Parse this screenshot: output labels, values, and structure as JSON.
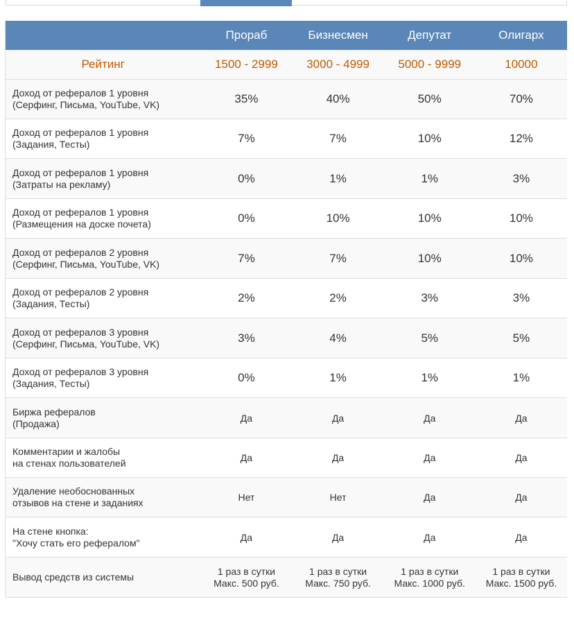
{
  "columns": [
    "Прораб",
    "Бизнесмен",
    "Депутат",
    "Олигарх"
  ],
  "rating": {
    "label": "Рейтинг",
    "values": [
      "1500 - 2999",
      "3000 - 4999",
      "5000 - 9999",
      "10000"
    ]
  },
  "rows": [
    {
      "line1": "Доход от рефералов 1 уровня",
      "line2": "(Серфинг, Письма, YouTube, VK)",
      "values": [
        "35%",
        "40%",
        "50%",
        "70%"
      ]
    },
    {
      "line1": "Доход от рефералов 1 уровня",
      "line2": "(Задания, Тесты)",
      "values": [
        "7%",
        "7%",
        "10%",
        "12%"
      ]
    },
    {
      "line1": "Доход от рефералов 1 уровня",
      "line2": "(Затраты на рекламу)",
      "values": [
        "0%",
        "1%",
        "1%",
        "3%"
      ]
    },
    {
      "line1": "Доход от рефералов 1 уровня",
      "line2": "(Размещения на доске почета)",
      "values": [
        "0%",
        "10%",
        "10%",
        "10%"
      ]
    },
    {
      "line1": "Доход от рефералов 2 уровня",
      "line2": "(Серфинг, Письма, YouTube, VK)",
      "values": [
        "7%",
        "7%",
        "10%",
        "10%"
      ]
    },
    {
      "line1": "Доход от рефералов 2 уровня",
      "line2": "(Задания, Тесты)",
      "values": [
        "2%",
        "2%",
        "3%",
        "3%"
      ]
    },
    {
      "line1": "Доход от рефералов 3 уровня",
      "line2": "(Серфинг, Письма, YouTube, VK)",
      "values": [
        "3%",
        "4%",
        "5%",
        "5%"
      ]
    },
    {
      "line1": "Доход от рефералов 3 уровня",
      "line2": "(Задания, Тесты)",
      "values": [
        "0%",
        "1%",
        "1%",
        "1%"
      ]
    },
    {
      "line1": "Биржа рефералов",
      "line2": "(Продажа)",
      "values": [
        "Да",
        "Да",
        "Да",
        "Да"
      ]
    },
    {
      "line1": "Комментарии и жалобы",
      "line2": "на стенах пользователей",
      "values": [
        "Да",
        "Да",
        "Да",
        "Да"
      ]
    },
    {
      "line1": "Удаление необоснованных",
      "line2": "отзывов на стене и заданиях",
      "values": [
        "Нет",
        "Нет",
        "Да",
        "Да"
      ]
    },
    {
      "line1": "На стене кнопка:",
      "line2": "\"Хочу стать его рефералом\"",
      "values": [
        "Да",
        "Да",
        "Да",
        "Да"
      ]
    }
  ],
  "withdraw": {
    "label": "Вывод средств из системы",
    "values": [
      {
        "line1": "1 раз в сутки",
        "line2": "Макс. 500 руб."
      },
      {
        "line1": "1 раз в сутки",
        "line2": "Макс. 750 руб."
      },
      {
        "line1": "1 раз в сутки",
        "line2": "Макс. 1000 руб."
      },
      {
        "line1": "1 раз в сутки",
        "line2": "Макс. 1500 руб."
      }
    ]
  }
}
